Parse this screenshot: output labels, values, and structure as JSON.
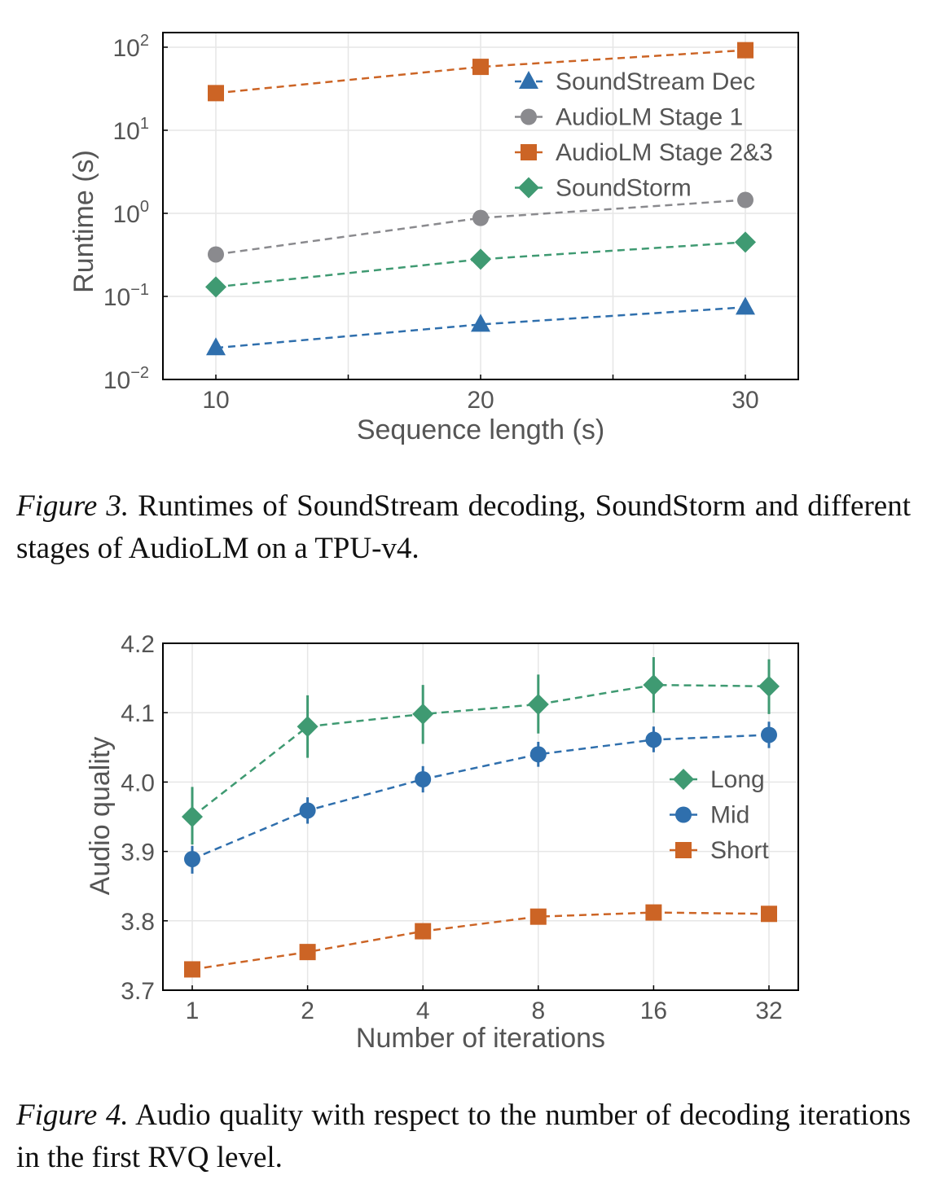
{
  "colors": {
    "blue": "#2f6fad",
    "gray": "#8a8a8e",
    "orange": "#cc6425",
    "green": "#3f9a72",
    "grid": "#e6e6e6",
    "axis": "#000000",
    "text": "#555555"
  },
  "captions": {
    "fig3_label": "Figure 3.",
    "fig3_text": "Runtimes of SoundStream decoding, SoundStorm and different stages of AudioLM on a TPU-v4.",
    "fig4_label": "Figure 4.",
    "fig4_text": "Audio quality with respect to the number of decoding iterations in the first RVQ level."
  },
  "chart_data": [
    {
      "type": "line",
      "xlabel": "Sequence length (s)",
      "ylabel": "Runtime (s)",
      "x": [
        10,
        20,
        30
      ],
      "xticks": [
        "10",
        "20",
        "30"
      ],
      "xlim": [
        8,
        32
      ],
      "yscale": "log",
      "ylim": [
        0.01,
        150
      ],
      "yticks": [
        {
          "value": 100,
          "base": "10",
          "exp": "2"
        },
        {
          "value": 10,
          "base": "10",
          "exp": "1"
        },
        {
          "value": 1,
          "base": "10",
          "exp": "0"
        },
        {
          "value": 0.1,
          "base": "10",
          "exp": "−1"
        },
        {
          "value": 0.01,
          "base": "10",
          "exp": "−2"
        }
      ],
      "grid": true,
      "legend_position": "top-right",
      "series": [
        {
          "name": "SoundStream Dec",
          "marker": "triangle",
          "color": "#2f6fad",
          "values": [
            0.024,
            0.046,
            0.074
          ]
        },
        {
          "name": "AudioLM Stage 1",
          "marker": "circle",
          "color": "#8a8a8e",
          "values": [
            0.32,
            0.88,
            1.45
          ]
        },
        {
          "name": "AudioLM Stage 2&3",
          "marker": "square",
          "color": "#cc6425",
          "values": [
            28,
            58,
            92
          ]
        },
        {
          "name": "SoundStorm",
          "marker": "diamond",
          "color": "#3f9a72",
          "values": [
            0.13,
            0.28,
            0.45
          ]
        }
      ]
    },
    {
      "type": "line",
      "xlabel": "Number of iterations",
      "ylabel": "Audio quality",
      "categories": [
        "1",
        "2",
        "4",
        "8",
        "16",
        "32"
      ],
      "ylim": [
        3.7,
        4.2
      ],
      "yticks": [
        "3.7",
        "3.8",
        "3.9",
        "4.0",
        "4.1",
        "4.2"
      ],
      "grid": true,
      "legend_position": "center-right",
      "series": [
        {
          "name": "Long",
          "marker": "diamond",
          "color": "#3f9a72",
          "values": [
            3.95,
            4.08,
            4.098,
            4.112,
            4.14,
            4.138
          ],
          "err_low": [
            3.91,
            4.035,
            4.055,
            4.07,
            4.1,
            4.098
          ],
          "err_high": [
            3.993,
            4.125,
            4.14,
            4.155,
            4.18,
            4.177
          ]
        },
        {
          "name": "Mid",
          "marker": "circle",
          "color": "#2f6fad",
          "values": [
            3.889,
            3.959,
            4.004,
            4.04,
            4.061,
            4.068
          ],
          "err_low": [
            3.868,
            3.94,
            3.985,
            4.022,
            4.043,
            4.049
          ],
          "err_high": [
            3.908,
            3.978,
            4.023,
            4.058,
            4.08,
            4.087
          ]
        },
        {
          "name": "Short",
          "marker": "square",
          "color": "#cc6425",
          "values": [
            3.73,
            3.755,
            3.785,
            3.806,
            3.812,
            3.81
          ],
          "err_low": [
            3.72,
            3.745,
            3.775,
            3.796,
            3.802,
            3.8
          ],
          "err_high": [
            3.74,
            3.765,
            3.795,
            3.816,
            3.822,
            3.82
          ]
        }
      ]
    }
  ]
}
